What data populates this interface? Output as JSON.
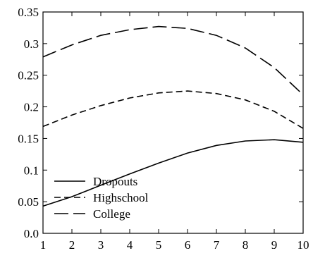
{
  "chart_data": {
    "type": "line",
    "x": [
      1,
      2,
      3,
      4,
      5,
      6,
      7,
      8,
      9,
      10
    ],
    "xlim": [
      1,
      10
    ],
    "ylim": [
      0,
      0.35
    ],
    "xticks": [
      "1",
      "2",
      "3",
      "4",
      "5",
      "6",
      "7",
      "8",
      "9",
      "10"
    ],
    "yticks": [
      "0.0",
      "0.05",
      "0.1",
      "0.15",
      "0.2",
      "0.25",
      "0.3",
      "0.35"
    ],
    "grid": false,
    "legend_position": "bottom-left",
    "series": [
      {
        "name": "Dropouts",
        "style": "solid",
        "color": "#000000",
        "values": [
          0.043,
          0.058,
          0.076,
          0.094,
          0.111,
          0.127,
          0.139,
          0.146,
          0.148,
          0.144
        ]
      },
      {
        "name": "Highschool",
        "style": "short-dash",
        "color": "#000000",
        "values": [
          0.169,
          0.187,
          0.202,
          0.214,
          0.222,
          0.225,
          0.221,
          0.211,
          0.193,
          0.166
        ]
      },
      {
        "name": "College",
        "style": "long-dash",
        "color": "#000000",
        "values": [
          0.279,
          0.298,
          0.313,
          0.322,
          0.327,
          0.324,
          0.313,
          0.293,
          0.262,
          0.219
        ]
      }
    ]
  }
}
